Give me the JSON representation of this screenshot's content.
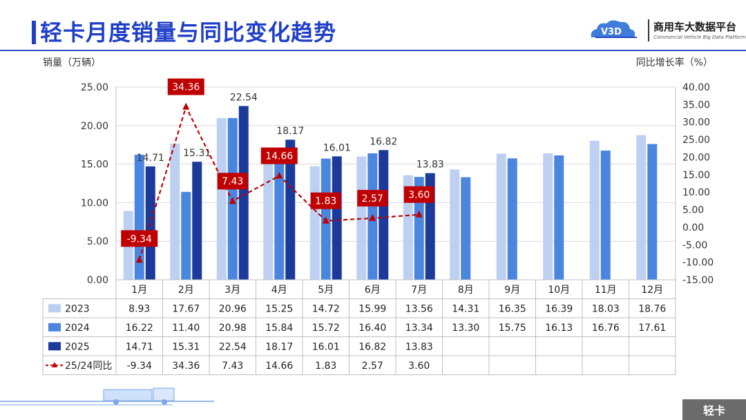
{
  "page": {
    "title": "轻卡月度销量与同比变化趋势",
    "logo_text": "商用车大数据平台",
    "logo_sub": "Commercial Vehicle Big Data Platform",
    "logo_mark": "V3D",
    "left_axis_label": "销量（万辆）",
    "right_axis_label": "同比增长率（%）",
    "corner_tag": "轻卡",
    "icons": [
      "logo-cloud-icon",
      "truck-icon"
    ]
  },
  "chart_data": {
    "type": "bar",
    "categories": [
      "1月",
      "2月",
      "3月",
      "4月",
      "5月",
      "6月",
      "7月",
      "8月",
      "9月",
      "10月",
      "11月",
      "12月"
    ],
    "series": [
      {
        "name": "2023",
        "type": "bar",
        "color": "#bdd0f2",
        "values": [
          8.93,
          17.67,
          20.96,
          15.25,
          14.72,
          15.99,
          13.56,
          14.31,
          16.35,
          16.39,
          18.03,
          18.76
        ]
      },
      {
        "name": "2024",
        "type": "bar",
        "color": "#4a86e0",
        "values": [
          16.22,
          11.4,
          20.98,
          15.84,
          15.72,
          16.4,
          13.34,
          13.3,
          15.75,
          16.13,
          16.76,
          17.61
        ]
      },
      {
        "name": "2025",
        "type": "bar",
        "color": "#1b3a9a",
        "values": [
          14.71,
          15.31,
          22.54,
          18.17,
          16.01,
          16.82,
          13.83,
          null,
          null,
          null,
          null,
          null
        ]
      },
      {
        "name": "25/24同比",
        "type": "line",
        "axis": "right",
        "color": "#c00000",
        "values": [
          -9.34,
          34.36,
          7.43,
          14.66,
          1.83,
          2.57,
          3.6,
          null,
          null,
          null,
          null,
          null
        ]
      }
    ],
    "left_axis": {
      "min": 0,
      "max": 25,
      "step": 5,
      "tick_labels": [
        "0.00",
        "5.00",
        "10.00",
        "15.00",
        "20.00",
        "25.00"
      ]
    },
    "right_axis": {
      "min": -15,
      "max": 40,
      "step": 5,
      "tick_labels": [
        "-15.00",
        "-10.00",
        "-5.00",
        "0.00",
        "5.00",
        "10.00",
        "15.00",
        "20.00",
        "25.00",
        "30.00",
        "35.00",
        "40.00"
      ]
    },
    "bar_data_labels": [
      "14.71",
      "15.31",
      "22.54",
      "18.17",
      "16.01",
      "16.82",
      "13.83"
    ],
    "line_data_labels": [
      "-9.34",
      "34.36",
      "7.43",
      "14.66",
      "1.83",
      "2.57",
      "3.60"
    ],
    "table": {
      "rows": [
        {
          "label": "2023",
          "cells": [
            "8.93",
            "17.67",
            "20.96",
            "15.25",
            "14.72",
            "15.99",
            "13.56",
            "14.31",
            "16.35",
            "16.39",
            "18.03",
            "18.76"
          ]
        },
        {
          "label": "2024",
          "cells": [
            "16.22",
            "11.40",
            "20.98",
            "15.84",
            "15.72",
            "16.40",
            "13.34",
            "13.30",
            "15.75",
            "16.13",
            "16.76",
            "17.61"
          ]
        },
        {
          "label": "2025",
          "cells": [
            "14.71",
            "15.31",
            "22.54",
            "18.17",
            "16.01",
            "16.82",
            "13.83",
            "",
            "",
            "",
            "",
            ""
          ]
        },
        {
          "label": "25/24同比",
          "cells": [
            "-9.34",
            "34.36",
            "7.43",
            "14.66",
            "1.83",
            "2.57",
            "3.60",
            "",
            "",
            "",
            "",
            ""
          ]
        }
      ]
    },
    "legend_position": "table-left",
    "grid": true
  }
}
